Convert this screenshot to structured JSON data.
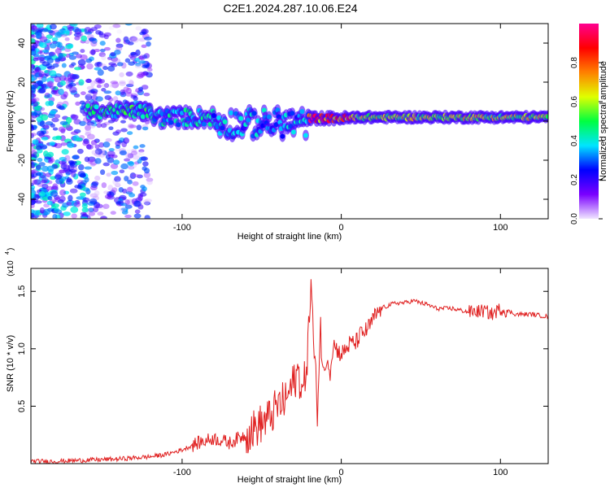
{
  "title": "C2E1.2024.287.10.06.E24",
  "colors": {
    "plot_line": "#e02020",
    "frame": "#000000",
    "scatter_main": "#5a1ee6"
  },
  "chart_data": [
    {
      "type": "heatmap",
      "name": "spectrogram",
      "xlabel": "Height of straight line (km)",
      "ylabel": "Frequency (Hz)",
      "xlim": [
        -195,
        130
      ],
      "ylim": [
        -50,
        50
      ],
      "xticks": [
        -100,
        0,
        100
      ],
      "yticks": [
        -40,
        -20,
        0,
        20,
        40
      ],
      "colorbar": {
        "label": "Normalized spectral amplitude",
        "range": [
          0,
          1
        ],
        "ticks": [
          0.0,
          0.2,
          0.4,
          0.6,
          0.8
        ],
        "colormap": [
          "#f0e6ff",
          "#7a00ff",
          "#0000ff",
          "#00e5ff",
          "#00ff40",
          "#e0ff00",
          "#ff8000",
          "#ff0000",
          "#ff0090"
        ]
      },
      "bands": [
        {
          "x": [
            -160,
            -120
          ],
          "y": [
            2,
            8
          ],
          "amplitude": 0.45
        },
        {
          "x": [
            -120,
            -80
          ],
          "y": [
            -2,
            6
          ],
          "amplitude": 0.4
        },
        {
          "x": [
            -80,
            -20
          ],
          "y": [
            -8,
            6
          ],
          "amplitude": 0.35
        },
        {
          "x": [
            -20,
            10
          ],
          "y": [
            0,
            3
          ],
          "amplitude": 0.85
        },
        {
          "x": [
            10,
            130
          ],
          "y": [
            1,
            3
          ],
          "amplitude": 0.6
        }
      ]
    },
    {
      "type": "line",
      "name": "snr",
      "xlabel": "Height of straight line (km)",
      "ylabel": "SNR (10 * v/v)",
      "yscale_label": "(x10",
      "yscale_exp": "4",
      "xlim": [
        -195,
        130
      ],
      "ylim": [
        0,
        1.7
      ],
      "xticks": [
        -100,
        0,
        100
      ],
      "yticks": [
        0.5,
        1.0,
        1.5
      ],
      "series": [
        {
          "name": "SNR",
          "x": [
            -195,
            -180,
            -160,
            -140,
            -130,
            -120,
            -110,
            -100,
            -95,
            -90,
            -85,
            -80,
            -75,
            -70,
            -65,
            -60,
            -55,
            -50,
            -45,
            -40,
            -35,
            -30,
            -27,
            -24,
            -21,
            -19,
            -17,
            -15,
            -13,
            -11,
            -9,
            -7,
            -5,
            -3,
            0,
            3,
            6,
            9,
            12,
            15,
            18,
            21,
            25,
            30,
            35,
            40,
            45,
            50,
            55,
            60,
            70,
            80,
            90,
            95,
            100,
            110,
            120,
            130
          ],
          "y": [
            0.02,
            0.02,
            0.03,
            0.04,
            0.05,
            0.06,
            0.08,
            0.12,
            0.15,
            0.18,
            0.2,
            0.22,
            0.2,
            0.18,
            0.22,
            0.25,
            0.3,
            0.35,
            0.4,
            0.5,
            0.55,
            0.7,
            0.8,
            0.6,
            1.0,
            1.6,
            0.9,
            0.5,
            1.2,
            0.7,
            0.95,
            0.8,
            1.05,
            1.0,
            0.95,
            1.0,
            1.05,
            1.05,
            1.12,
            1.15,
            1.2,
            1.28,
            1.35,
            1.38,
            1.4,
            1.4,
            1.42,
            1.4,
            1.38,
            1.35,
            1.35,
            1.32,
            1.33,
            1.3,
            1.35,
            1.3,
            1.3,
            1.28
          ]
        }
      ]
    }
  ]
}
